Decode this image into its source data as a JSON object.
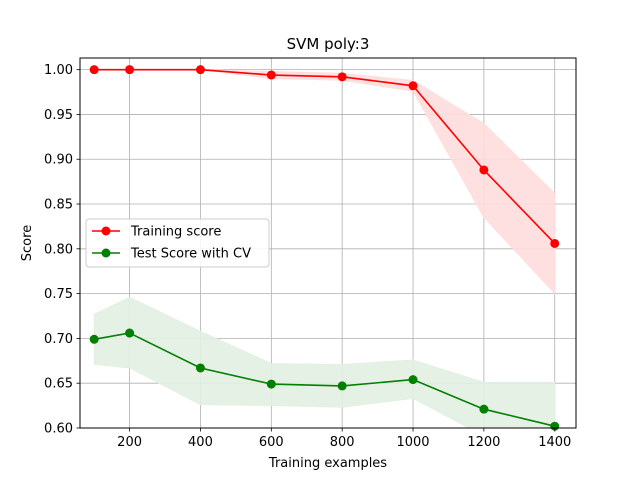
{
  "chart_data": {
    "type": "line",
    "title": "SVM poly:3",
    "xlabel": "Training examples",
    "ylabel": "Score",
    "xlim": [
      60,
      1460
    ],
    "ylim": [
      0.6,
      1.013
    ],
    "xticks": [
      200,
      400,
      600,
      800,
      1000,
      1200,
      1400
    ],
    "yticks": [
      0.6,
      0.65,
      0.7,
      0.75,
      0.8,
      0.85,
      0.9,
      0.95,
      1.0
    ],
    "xtick_labels": [
      "200",
      "400",
      "600",
      "800",
      "1000",
      "1200",
      "1400"
    ],
    "ytick_labels": [
      "0.60",
      "0.65",
      "0.70",
      "0.75",
      "0.80",
      "0.85",
      "0.90",
      "0.95",
      "1.00"
    ],
    "grid": true,
    "legend_position": "center-left",
    "x": [
      100,
      200,
      400,
      600,
      800,
      1000,
      1200,
      1400
    ],
    "series": [
      {
        "name": "Training score",
        "color": "#ff0000",
        "band_color": "#ffdddd",
        "values": [
          1.0,
          1.0,
          1.0,
          0.994,
          0.992,
          0.982,
          0.888,
          0.806
        ],
        "upper": [
          1.0,
          1.0,
          1.0,
          0.998,
          0.996,
          0.988,
          0.94,
          0.862
        ],
        "lower": [
          1.0,
          1.0,
          1.0,
          0.99,
          0.988,
          0.976,
          0.835,
          0.75
        ]
      },
      {
        "name": "Test Score with CV",
        "color": "#008000",
        "band_color": "#e3f0e3",
        "values": [
          0.699,
          0.706,
          0.667,
          0.649,
          0.647,
          0.654,
          0.621,
          0.602
        ],
        "upper": [
          0.727,
          0.746,
          0.708,
          0.672,
          0.671,
          0.676,
          0.651,
          0.651
        ],
        "lower": [
          0.671,
          0.667,
          0.626,
          0.625,
          0.623,
          0.633,
          0.591,
          0.553
        ]
      }
    ]
  }
}
